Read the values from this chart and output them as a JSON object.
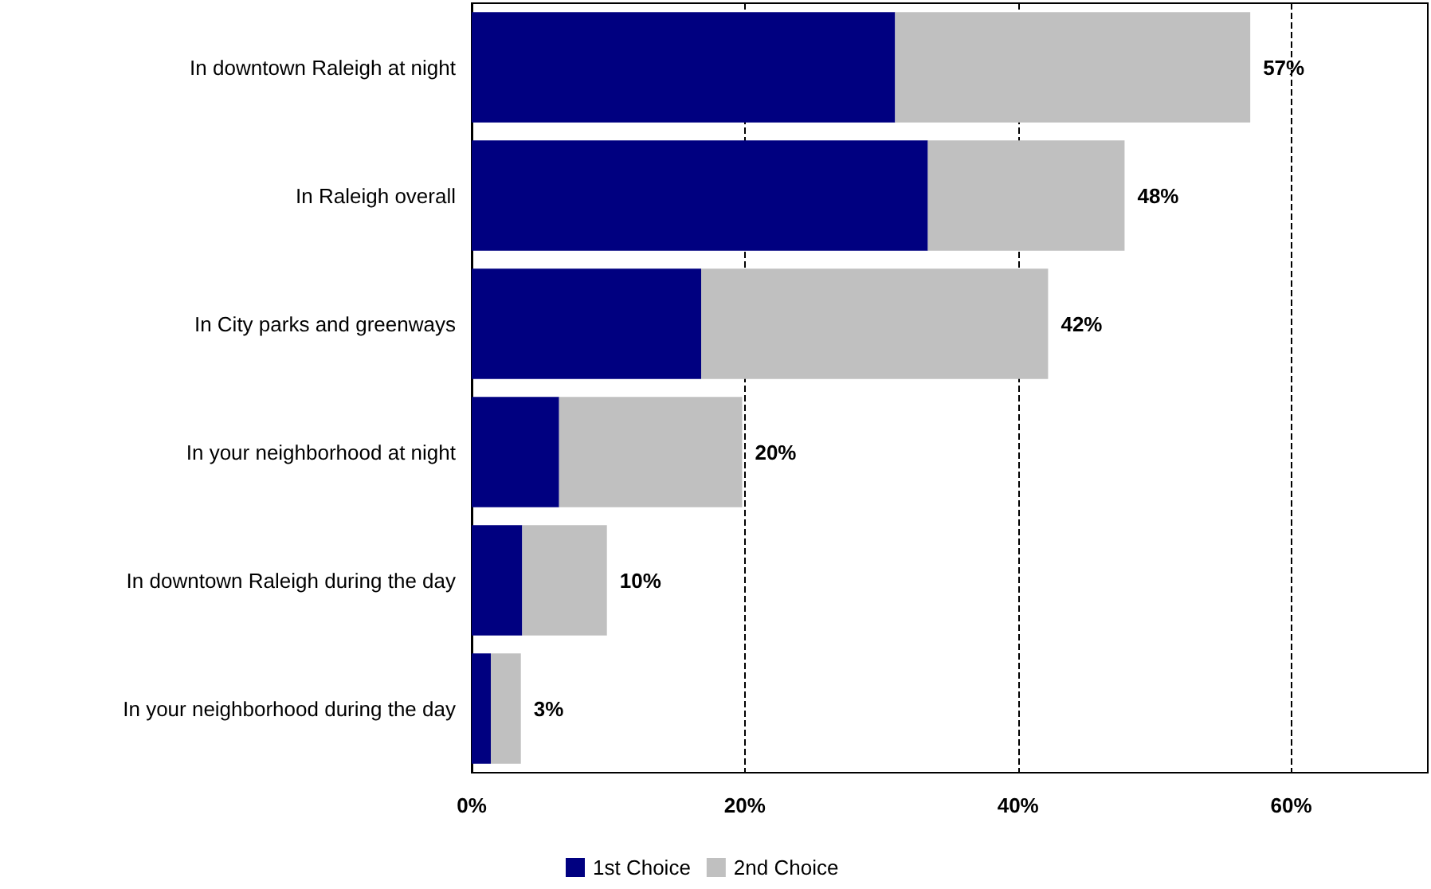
{
  "chart_data": {
    "type": "bar",
    "orientation": "horizontal",
    "stacked": true,
    "categories": [
      "In downtown Raleigh at night",
      "In Raleigh overall",
      "In City parks and greenways",
      "In your neighborhood at night",
      "In downtown Raleigh during the day",
      "In your neighborhood during the day"
    ],
    "series": [
      {
        "name": "1st Choice",
        "color": "#000080",
        "values": [
          31,
          33.4,
          16.8,
          6.4,
          3.7,
          1.4
        ]
      },
      {
        "name": "2nd Choice",
        "color": "#c0c0c0",
        "values": [
          26,
          14.4,
          25.4,
          13.4,
          6.2,
          2.2
        ]
      }
    ],
    "totals": [
      "57%",
      "48%",
      "42%",
      "20%",
      "10%",
      "3%"
    ],
    "xlim": [
      0,
      70
    ],
    "xticks": [
      {
        "value": 0,
        "label": "0%"
      },
      {
        "value": 20,
        "label": "20%"
      },
      {
        "value": 40,
        "label": "40%"
      },
      {
        "value": 60,
        "label": "60%"
      }
    ],
    "grid": "x",
    "legend": "bottom"
  }
}
